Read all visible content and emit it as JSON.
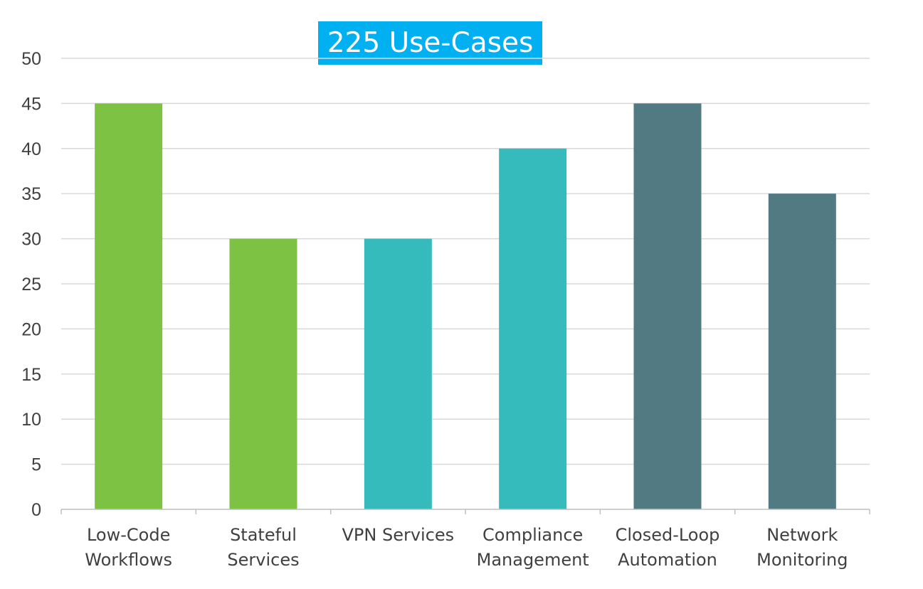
{
  "chart_data": {
    "type": "bar",
    "title": "225 Use-Cases",
    "categories": [
      [
        "Low-Code",
        "Workflows"
      ],
      [
        "Stateful",
        "Services"
      ],
      [
        "VPN Services"
      ],
      [
        "Compliance",
        "Management"
      ],
      [
        "Closed-Loop",
        "Automation"
      ],
      [
        "Network",
        "Monitoring"
      ]
    ],
    "values": [
      45,
      30,
      30,
      40,
      45,
      35
    ],
    "bar_colors": [
      "#7dc242",
      "#7dc242",
      "#36bbbc",
      "#36bbbc",
      "#527a82",
      "#527a82"
    ],
    "ylim": [
      0,
      50
    ],
    "yticks": [
      "0",
      "5",
      "10",
      "15",
      "20",
      "25",
      "30",
      "35",
      "40",
      "45",
      "50"
    ],
    "grid": true,
    "xlabel": "",
    "ylabel": "",
    "colors": {
      "title_background": "#00b0f0",
      "title_text": "#ffffff",
      "grid": "#d9d9d9",
      "axis": "#bfbfbf",
      "tick_text": "#404040"
    }
  }
}
